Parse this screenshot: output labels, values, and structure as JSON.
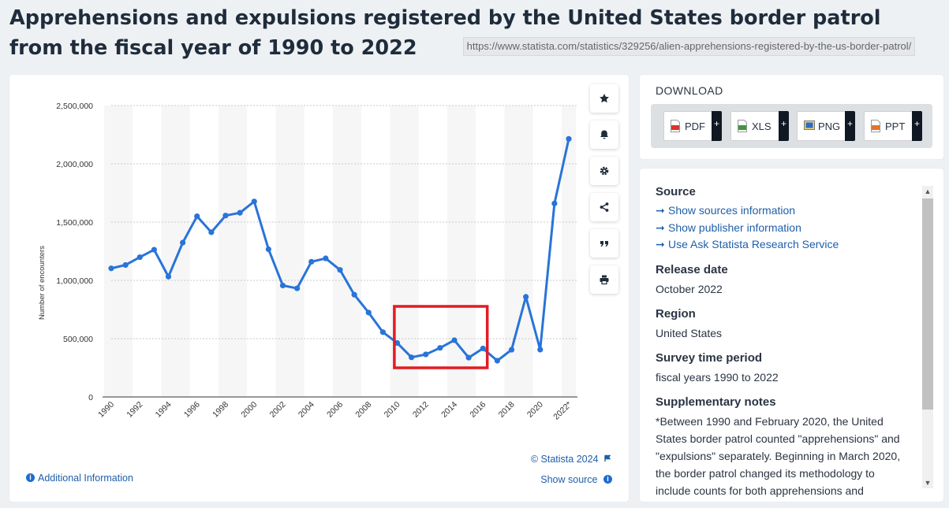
{
  "page": {
    "title": "Apprehensions and expulsions registered by the United States border patrol from the fiscal year of 1990 to 2022",
    "url": "https://www.statista.com/statistics/329256/alien-apprehensions-registered-by-the-us-border-patrol/"
  },
  "chart_tools": [
    {
      "name": "star-icon"
    },
    {
      "name": "bell-icon"
    },
    {
      "name": "gear-icon"
    },
    {
      "name": "share-icon"
    },
    {
      "name": "quote-icon"
    },
    {
      "name": "print-icon"
    }
  ],
  "chart_footer": {
    "copyright": "© Statista 2024",
    "additional_info": "Additional Information",
    "show_source": "Show source"
  },
  "chart_data": {
    "type": "line",
    "title": "",
    "xlabel": "",
    "ylabel": "Number of encounters",
    "ylim": [
      0,
      2500000
    ],
    "yticks": [
      0,
      500000,
      1000000,
      1500000,
      2000000,
      2500000
    ],
    "ytick_labels": [
      "0",
      "500,000",
      "1,000,000",
      "1,500,000",
      "2,000,000",
      "2,500,000"
    ],
    "xtick_labels": [
      "1990",
      "1992",
      "1994",
      "1996",
      "1998",
      "2000",
      "2002",
      "2004",
      "2006",
      "2008",
      "2010",
      "2012",
      "2014",
      "2016",
      "2018",
      "2020",
      "2022*"
    ],
    "x": [
      1990,
      1991,
      1992,
      1993,
      1994,
      1995,
      1996,
      1997,
      1998,
      1999,
      2000,
      2001,
      2002,
      2003,
      2004,
      2005,
      2006,
      2007,
      2008,
      2009,
      2010,
      2011,
      2012,
      2013,
      2014,
      2015,
      2016,
      2017,
      2018,
      2019,
      2020,
      2021,
      2022
    ],
    "series": [
      {
        "name": "Apprehensions and expulsions",
        "color": "#2874d9",
        "values": [
          1103000,
          1132000,
          1199000,
          1263000,
          1032000,
          1324000,
          1550000,
          1413000,
          1556000,
          1580000,
          1677000,
          1267000,
          956000,
          932000,
          1160000,
          1189000,
          1090000,
          877000,
          724000,
          556000,
          463000,
          340000,
          365000,
          421000,
          487000,
          337000,
          416000,
          311000,
          405000,
          859000,
          406000,
          1660000,
          2214000
        ]
      }
    ],
    "highlight": {
      "x_from": 2009.8,
      "x_to": 2016.3,
      "color": "#e31b23"
    }
  },
  "download": {
    "title": "DOWNLOAD",
    "buttons": [
      {
        "label": "PDF",
        "icon": "pdf-file-icon",
        "color": "#d9342b"
      },
      {
        "label": "XLS",
        "icon": "xls-file-icon",
        "color": "#3d9a3a"
      },
      {
        "label": "PNG",
        "icon": "png-file-icon",
        "color": "#2b6cc4"
      },
      {
        "label": "PPT",
        "icon": "ppt-file-icon",
        "color": "#e1762b"
      }
    ],
    "plus": "+"
  },
  "info": {
    "source_title": "Source",
    "source_links": [
      "Show sources information",
      "Show publisher information",
      "Use Ask Statista Research Service"
    ],
    "release_title": "Release date",
    "release_value": "October 2022",
    "region_title": "Region",
    "region_value": "United States",
    "period_title": "Survey time period",
    "period_value": "fiscal years 1990 to 2022",
    "notes_title": "Supplementary notes",
    "notes_text": "*Between 1990 and February 2020, the United States border patrol counted \"apprehensions\" and \"expulsions\" separately. Beginning in March 2020, the border patrol changed its methodology to include counts for both apprehensions and expulsions."
  }
}
